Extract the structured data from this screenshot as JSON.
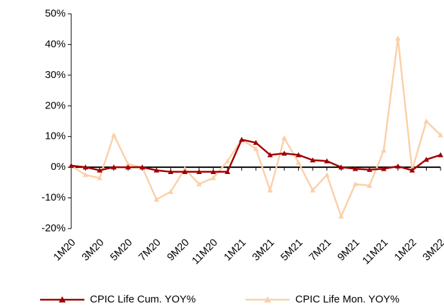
{
  "chart_data": {
    "type": "line",
    "categories": [
      "1M20",
      null,
      "3M20",
      null,
      "5M20",
      null,
      "7M20",
      null,
      "9M20",
      null,
      "11M20",
      null,
      "1M21",
      null,
      "3M21",
      null,
      "5M21",
      null,
      "7M21",
      null,
      "9M21",
      null,
      "11M21",
      null,
      "1M22",
      null,
      "3M22"
    ],
    "series": [
      {
        "name": "CPIC Life Cum. YOY%",
        "color": "#a00000",
        "values": [
          0.5,
          0,
          -1,
          0,
          0,
          0,
          -1,
          -1.5,
          -1.5,
          -1.5,
          -1.5,
          -1.5,
          9,
          8,
          4,
          4.5,
          4,
          2.3,
          2,
          0,
          -0.5,
          -0.8,
          -0.5,
          0.3,
          -1,
          2.5,
          4
        ]
      },
      {
        "name": "CPIC Life Mon. YOY%",
        "color": "#fbd0a8",
        "values": [
          0.5,
          -2.5,
          -3.5,
          10.5,
          1,
          0,
          -10.5,
          -8,
          -0.5,
          -5.5,
          -3.5,
          2,
          9,
          6,
          -7.5,
          9.5,
          1.5,
          -7.5,
          -2.5,
          -16,
          -5.5,
          -6,
          5.5,
          42,
          -1,
          15,
          10.5
        ]
      }
    ],
    "ylim": [
      -20,
      50
    ],
    "yticks": [
      {
        "value": -20,
        "label": "-20%"
      },
      {
        "value": -10,
        "label": "-10%"
      },
      {
        "value": 0,
        "label": "0%"
      },
      {
        "value": 10,
        "label": "10%"
      },
      {
        "value": 20,
        "label": "20%"
      },
      {
        "value": 30,
        "label": "30%"
      },
      {
        "value": 40,
        "label": "40%"
      },
      {
        "value": 50,
        "label": "50%"
      }
    ],
    "grid": false,
    "legend": "bottom"
  }
}
